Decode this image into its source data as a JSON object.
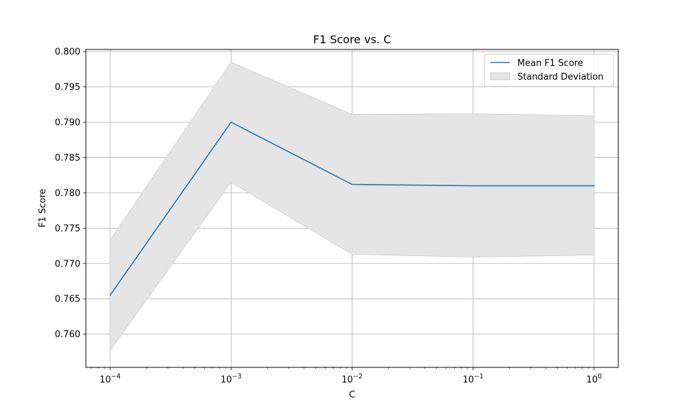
{
  "chart_data": {
    "type": "line",
    "title": "F1 Score vs. C",
    "xlabel": "C",
    "ylabel": "F1 Score",
    "x_scale": "log",
    "x": [
      0.0001,
      0.001,
      0.01,
      0.1,
      1
    ],
    "x_tick_labels": [
      {
        "base": "10",
        "exp": "−4"
      },
      {
        "base": "10",
        "exp": "−3"
      },
      {
        "base": "10",
        "exp": "−2"
      },
      {
        "base": "10",
        "exp": "−1"
      },
      {
        "base": "10",
        "exp": "0"
      }
    ],
    "xlim": [
      6.31e-05,
      1.585
    ],
    "ylim": [
      0.7553,
      0.8003
    ],
    "y_ticks": [
      0.76,
      0.765,
      0.77,
      0.775,
      0.78,
      0.785,
      0.79,
      0.795,
      0.8
    ],
    "y_tick_labels": [
      "0.760",
      "0.765",
      "0.770",
      "0.775",
      "0.780",
      "0.785",
      "0.790",
      "0.795",
      "0.800"
    ],
    "series": [
      {
        "name": "Mean F1 Score",
        "values": [
          0.7655,
          0.79,
          0.7812,
          0.781,
          0.781
        ],
        "color": "#1f77b4"
      }
    ],
    "band": {
      "name": "Standard Deviation",
      "lower": [
        0.7577,
        0.7815,
        0.7713,
        0.7709,
        0.7712
      ],
      "upper": [
        0.7733,
        0.7985,
        0.7911,
        0.7912,
        0.7909
      ],
      "color": "#e5e5e5",
      "edge_color": "#cccccc"
    },
    "grid": true,
    "legend_position": "top-right"
  }
}
